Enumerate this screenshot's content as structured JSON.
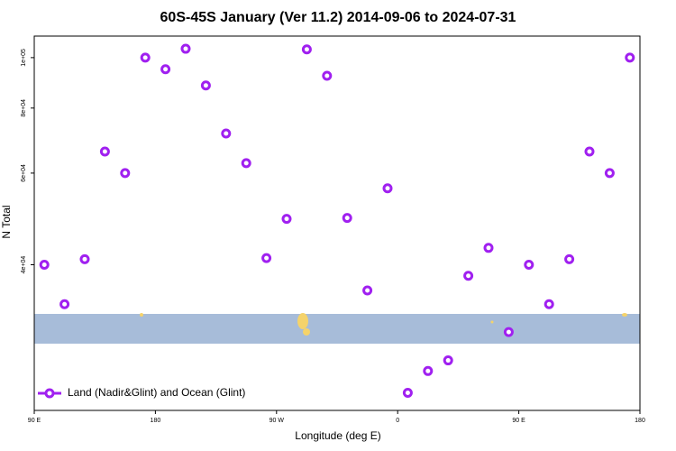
{
  "chart_data": {
    "type": "scatter",
    "title": "60S-45S January (Ver 11.2)   2014-09-06 to 2024-07-31",
    "xlabel": "Longitude (deg E)",
    "ylabel": "N Total",
    "log_y": true,
    "xlim": [
      90,
      540
    ],
    "xticks": [
      {
        "value": 90,
        "label": "90 E"
      },
      {
        "value": 180,
        "label": "180"
      },
      {
        "value": 270,
        "label": "90 W"
      },
      {
        "value": 360,
        "label": "0"
      },
      {
        "value": 450,
        "label": "90 E"
      },
      {
        "value": 540,
        "label": "180"
      }
    ],
    "ylim": [
      21000,
      110000
    ],
    "yticks": [
      {
        "value": 40000,
        "label": "4e+04"
      },
      {
        "value": 60000,
        "label": "6e+04"
      },
      {
        "value": 80000,
        "label": "8e+04"
      },
      {
        "value": 100000,
        "label": "1e+05"
      }
    ],
    "legend": "lower left",
    "series": [
      {
        "name": "Land (Nadir&Glint) and Ocean (Glint)",
        "color": "#a020f0",
        "x": [
          97.5,
          112.5,
          127.5,
          142.5,
          157.5,
          172.5,
          187.5,
          202.5,
          217.5,
          232.5,
          247.5,
          262.5,
          277.5,
          292.5,
          307.5,
          322.5,
          337.5,
          352.5,
          367.5,
          382.5,
          397.5,
          412.5,
          427.5,
          442.5,
          457.5,
          472.5,
          487.5,
          502.5,
          517.5,
          532.5
        ],
        "values": [
          40000,
          33600,
          41000,
          66000,
          60000,
          100000,
          95000,
          104000,
          88400,
          71500,
          62700,
          41200,
          49000,
          103700,
          92300,
          49200,
          35700,
          56100,
          22700,
          25000,
          26200,
          38100,
          43100,
          29700,
          40000,
          33600,
          41000,
          66000,
          60000,
          100000
        ]
      }
    ]
  }
}
